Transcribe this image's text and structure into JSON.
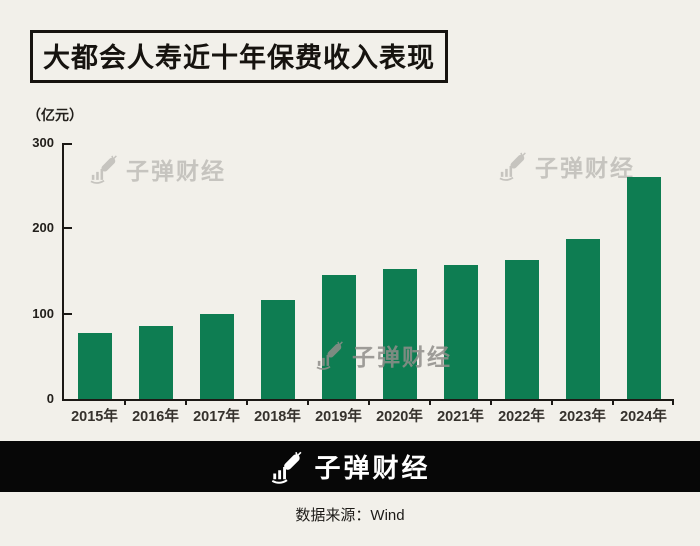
{
  "title": "大都会人寿近十年保费收入表现",
  "watermark": {
    "text": "子弹财经"
  },
  "brand_band": {
    "logo_text": "子弹财经"
  },
  "source": {
    "label": "数据来源：Wind"
  },
  "icons": {
    "brand_logo": "rocket-hand-logo-icon"
  },
  "colors": {
    "background": "#f2f0ea",
    "bar": "#0e7d52",
    "axis": "#1c1915",
    "band_background": "#070707",
    "band_text": "#ffffff",
    "watermark_top": "#c6c4bf",
    "watermark_bottom": "#908e8a",
    "text": "#23201c"
  },
  "chart_data": {
    "type": "bar",
    "title": "大都会人寿近十年保费收入表现",
    "unit_label": "（亿元）",
    "categories": [
      "2015年",
      "2016年",
      "2017年",
      "2018年",
      "2019年",
      "2020年",
      "2021年",
      "2022年",
      "2023年",
      "2024年"
    ],
    "values": [
      77,
      86,
      100,
      116,
      145,
      152,
      157,
      163,
      188,
      260
    ],
    "xlabel": "",
    "ylabel": "（亿元）",
    "ylim": [
      0,
      300
    ],
    "yticks": [
      0,
      100,
      200,
      300
    ],
    "grid": false,
    "legend": false,
    "bar_color": "#0e7d52"
  }
}
